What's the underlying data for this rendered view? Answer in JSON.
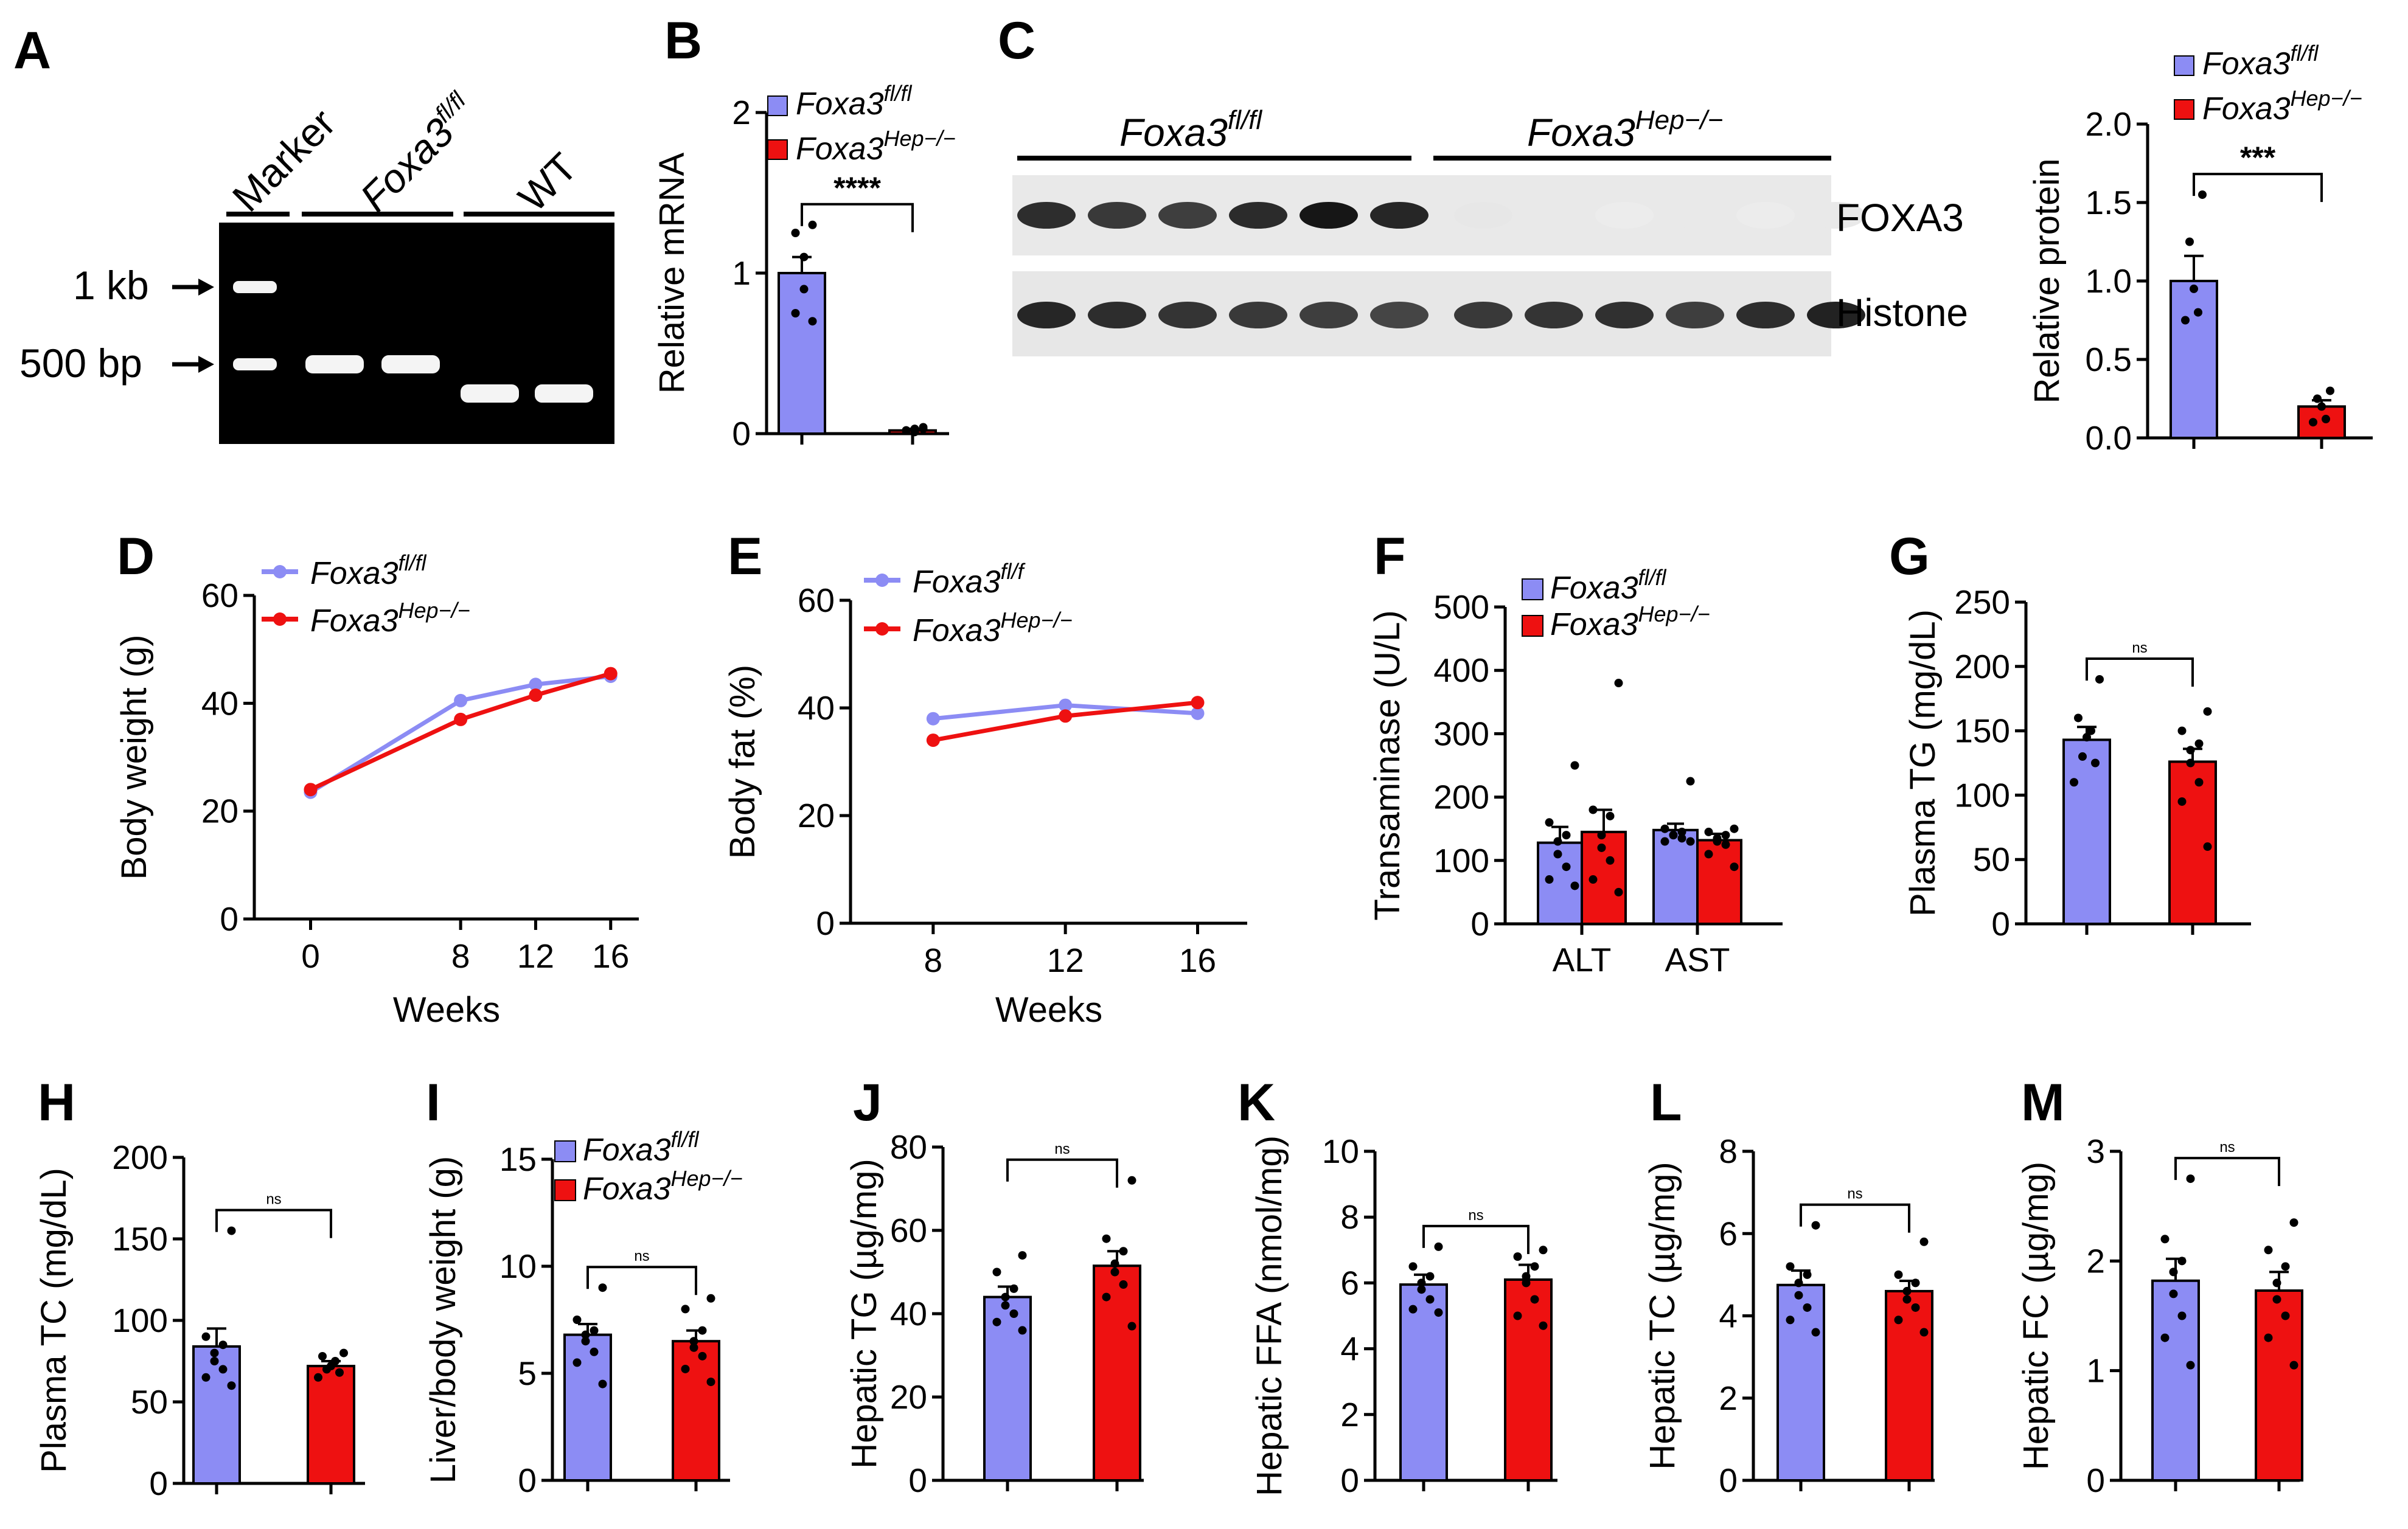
{
  "colors": {
    "flfl": "#8c8cf4",
    "hep": "#ee1111",
    "axis": "#000000"
  },
  "panel_labels": {
    "A": "A",
    "B": "B",
    "C": "C",
    "D": "D",
    "E": "E",
    "F": "F",
    "G": "G",
    "H": "H",
    "I": "I",
    "J": "J",
    "K": "K",
    "L": "L",
    "M": "M"
  },
  "legend": {
    "flfl": "Foxa3",
    "flfl_sup": "fl/fl",
    "flf_sup": "fl/f",
    "hep": "Foxa3",
    "hep_sup": "Hep−/−"
  },
  "gel": {
    "marker": "Marker",
    "foxa3": "Foxa3",
    "foxa3_sup": "fl/fl",
    "wt": "WT",
    "kb": "1 kb",
    "bp": "500 bp"
  },
  "blot": {
    "group1": "Foxa3",
    "group1_sup": "fl/fl",
    "group2": "Foxa3",
    "group2_sup": "Hep−/−",
    "row1": "FOXA3",
    "row2": "Histone",
    "foxa3_intensity": [
      0.85,
      0.8,
      0.78,
      0.86,
      0.95,
      0.88,
      0.06,
      0.05,
      0.04,
      0.05,
      0.04,
      0.05
    ],
    "histone_intensity": [
      0.88,
      0.85,
      0.82,
      0.8,
      0.78,
      0.75,
      0.8,
      0.82,
      0.84,
      0.78,
      0.85,
      0.9
    ]
  },
  "chart_data": [
    {
      "id": "B",
      "type": "bar",
      "ylabel": "Relative mRNA",
      "ylim": [
        0,
        2
      ],
      "yticks": [
        "0",
        "1",
        "2"
      ],
      "categories": [
        "Foxa3fl/fl",
        "Foxa3Hep−/−"
      ],
      "values": [
        1.0,
        0.02
      ],
      "sem": [
        0.1,
        0.01
      ],
      "points": [
        [
          1.3,
          1.25,
          1.1,
          0.9,
          0.75,
          0.7
        ],
        [
          0.04,
          0.02,
          0.03,
          0.01,
          0.02,
          0.03
        ]
      ],
      "annotation": "****"
    },
    {
      "id": "C",
      "type": "bar",
      "ylabel": "Relative protein",
      "ylim": [
        0,
        2.0
      ],
      "yticks": [
        "0.0",
        "0.5",
        "1.0",
        "1.5",
        "2.0"
      ],
      "categories": [
        "Foxa3fl/fl",
        "Foxa3Hep−/−"
      ],
      "values": [
        1.0,
        0.2
      ],
      "sem": [
        0.16,
        0.04
      ],
      "points": [
        [
          1.55,
          1.25,
          0.95,
          0.8,
          0.75
        ],
        [
          0.3,
          0.25,
          0.2,
          0.12,
          0.1
        ]
      ],
      "annotation": "***"
    },
    {
      "id": "D",
      "type": "line",
      "xlabel": "Weeks",
      "ylabel": "Body weight (g)",
      "ylim": [
        0,
        60
      ],
      "yticks": [
        "0",
        "20",
        "40",
        "60"
      ],
      "x": [
        0,
        8,
        12,
        16
      ],
      "xticks": [
        "0",
        "8",
        "12",
        "16"
      ],
      "series": [
        {
          "name": "Foxa3fl/fl",
          "values": [
            23.5,
            40.5,
            43.5,
            45
          ]
        },
        {
          "name": "Foxa3Hep−/−",
          "values": [
            24,
            37,
            41.5,
            45.5
          ]
        }
      ]
    },
    {
      "id": "E",
      "type": "line",
      "xlabel": "Weeks",
      "ylabel": "Body fat (%)",
      "ylim": [
        0,
        60
      ],
      "yticks": [
        "0",
        "20",
        "40",
        "60"
      ],
      "x": [
        8,
        12,
        16
      ],
      "xticks": [
        "8",
        "12",
        "16"
      ],
      "series": [
        {
          "name": "Foxa3fl/f",
          "values": [
            38,
            40.5,
            39
          ]
        },
        {
          "name": "Foxa3Hep−/−",
          "values": [
            34,
            38.5,
            41
          ]
        }
      ]
    },
    {
      "id": "F",
      "type": "bar",
      "ylabel": "Transaminase (U/L)",
      "ylim": [
        0,
        500
      ],
      "yticks": [
        "0",
        "100",
        "200",
        "300",
        "400",
        "500"
      ],
      "categories": [
        "ALT",
        "AST"
      ],
      "series": [
        {
          "name": "Foxa3fl/fl",
          "values": [
            128,
            148
          ],
          "sem": [
            25,
            10
          ]
        },
        {
          "name": "Foxa3Hep−/−",
          "values": [
            145,
            132
          ],
          "sem": [
            35,
            10
          ]
        }
      ],
      "points": [
        [
          [
            250,
            160,
            140,
            130,
            110,
            90,
            70,
            60
          ],
          [
            225,
            150,
            145,
            140,
            140,
            135,
            130,
            130
          ]
        ],
        [
          [
            380,
            180,
            170,
            140,
            120,
            100,
            70,
            50
          ],
          [
            150,
            145,
            140,
            135,
            130,
            125,
            110,
            90
          ]
        ]
      ]
    },
    {
      "id": "G",
      "type": "bar",
      "ylabel": "Plasma TG (mg/dL)",
      "ylim": [
        0,
        250
      ],
      "yticks": [
        "0",
        "50",
        "100",
        "150",
        "200",
        "250"
      ],
      "categories": [
        "Foxa3fl/fl",
        "Foxa3Hep−/−"
      ],
      "values": [
        143,
        126
      ],
      "sem": [
        10,
        10
      ],
      "points": [
        [
          190,
          160,
          150,
          145,
          130,
          125,
          110
        ],
        [
          165,
          150,
          140,
          135,
          125,
          110,
          95,
          60
        ]
      ],
      "annotation": "ns"
    },
    {
      "id": "H",
      "type": "bar",
      "ylabel": "Plasma TC (mg/dL)",
      "ylim": [
        0,
        200
      ],
      "yticks": [
        "0",
        "50",
        "100",
        "150",
        "200"
      ],
      "categories": [
        "Foxa3fl/fl",
        "Foxa3Hep−/−"
      ],
      "values": [
        84,
        72
      ],
      "sem": [
        11,
        3
      ],
      "points": [
        [
          155,
          90,
          85,
          80,
          75,
          70,
          65,
          60
        ],
        [
          80,
          78,
          75,
          72,
          70,
          68,
          65
        ]
      ],
      "annotation": "ns"
    },
    {
      "id": "I",
      "type": "bar",
      "ylabel": "Liver/body weight (g)",
      "ylim": [
        0,
        15
      ],
      "yticks": [
        "0",
        "5",
        "10",
        "15"
      ],
      "categories": [
        "Foxa3fl/fl",
        "Foxa3Hep−/−"
      ],
      "values": [
        6.8,
        6.5
      ],
      "sem": [
        0.5,
        0.5
      ],
      "points": [
        [
          9,
          7.5,
          7,
          6.8,
          6.5,
          6,
          5.5,
          4.5
        ],
        [
          8.5,
          8,
          7,
          6.5,
          6.2,
          5.8,
          5.2,
          4.6
        ]
      ],
      "annotation": "ns"
    },
    {
      "id": "J",
      "type": "bar",
      "ylabel": "Hepatic TG (µg/mg)",
      "ylim": [
        0,
        80
      ],
      "yticks": [
        "0",
        "20",
        "40",
        "60",
        "80"
      ],
      "categories": [
        "Foxa3fl/fl",
        "Foxa3Hep−/−"
      ],
      "values": [
        44,
        51.5
      ],
      "sem": [
        2.5,
        3.5
      ],
      "points": [
        [
          54,
          50,
          46,
          44,
          42,
          40,
          38,
          36
        ],
        [
          72,
          58,
          55,
          52,
          50,
          47,
          44,
          37
        ]
      ],
      "annotation": "ns"
    },
    {
      "id": "K",
      "type": "bar",
      "ylabel": "Hepatic FFA (nmol/mg)",
      "ylim": [
        0,
        10
      ],
      "yticks": [
        "0",
        "2",
        "4",
        "6",
        "8",
        "10"
      ],
      "categories": [
        "Foxa3fl/fl",
        "Foxa3Hep−/−"
      ],
      "values": [
        5.95,
        6.1
      ],
      "sem": [
        0.3,
        0.45
      ],
      "points": [
        [
          7.1,
          6.5,
          6.2,
          6,
          5.8,
          5.5,
          5.2,
          5.1
        ],
        [
          7,
          6.8,
          6.5,
          6.2,
          6,
          5.5,
          5,
          4.7
        ]
      ],
      "annotation": "ns"
    },
    {
      "id": "L",
      "type": "bar",
      "ylabel": "Hepatic TC (µg/mg)",
      "ylim": [
        0,
        8
      ],
      "yticks": [
        "0",
        "2",
        "4",
        "6",
        "8"
      ],
      "categories": [
        "Foxa3fl/fl",
        "Foxa3Hep−/−"
      ],
      "values": [
        4.75,
        4.6
      ],
      "sem": [
        0.35,
        0.25
      ],
      "points": [
        [
          6.2,
          5.2,
          5,
          4.8,
          4.5,
          4.2,
          3.9,
          3.6
        ],
        [
          5.8,
          5,
          4.8,
          4.6,
          4.4,
          4.2,
          3.9,
          3.6
        ]
      ],
      "annotation": "ns"
    },
    {
      "id": "M",
      "type": "bar",
      "ylabel": "Hepatic FC (µg/mg)",
      "ylim": [
        0,
        3
      ],
      "yticks": [
        "0",
        "1",
        "2",
        "3"
      ],
      "categories": [
        "Foxa3fl/fl",
        "Foxa3Hep−/−"
      ],
      "values": [
        1.82,
        1.73
      ],
      "sem": [
        0.2,
        0.17
      ],
      "points": [
        [
          2.75,
          2.2,
          2,
          1.9,
          1.7,
          1.5,
          1.3,
          1.05
        ],
        [
          2.35,
          2.1,
          1.95,
          1.8,
          1.65,
          1.5,
          1.3,
          1.05
        ]
      ],
      "annotation": "ns"
    }
  ]
}
